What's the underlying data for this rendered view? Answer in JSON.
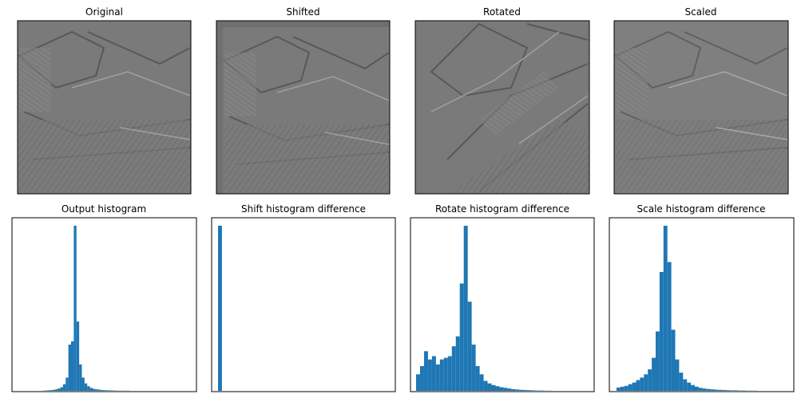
{
  "colors": {
    "histogram_bar": "#1f77b4",
    "image_gray": "#7a7a7a",
    "axis_frame": "#000000"
  },
  "image_panels": [
    {
      "title": "Original",
      "transform": "none"
    },
    {
      "title": "Shifted",
      "transform": "shift"
    },
    {
      "title": "Rotated",
      "transform": "rotate"
    },
    {
      "title": "Scaled",
      "transform": "scale"
    }
  ],
  "chart_data": [
    {
      "type": "bar",
      "title": "Output histogram",
      "xlabel": "",
      "ylabel": "",
      "grid": false,
      "x": [
        -10,
        -9,
        -8,
        -7,
        -6,
        -5,
        -4,
        -3,
        -2,
        -1,
        0,
        1,
        2,
        3,
        4,
        5,
        6,
        7,
        8,
        9,
        10,
        11,
        12,
        13,
        14,
        15,
        16,
        17,
        18,
        19,
        20,
        21,
        22,
        23,
        24,
        25,
        26,
        27,
        28,
        29,
        30
      ],
      "values": [
        1,
        2,
        3,
        4,
        6,
        9,
        14,
        22,
        40,
        80,
        280,
        300,
        1000,
        420,
        160,
        80,
        45,
        28,
        18,
        12,
        9,
        7,
        5,
        4,
        3,
        3,
        2,
        2,
        1,
        1,
        1,
        1,
        1,
        0,
        0,
        0,
        0,
        0,
        0,
        0,
        0
      ],
      "ylim": [
        0,
        1000
      ]
    },
    {
      "type": "bar",
      "title": "Shift histogram difference",
      "xlabel": "",
      "ylabel": "",
      "grid": false,
      "x": [
        0,
        1,
        2,
        3,
        4,
        5,
        6,
        7,
        8,
        9,
        10,
        11,
        12,
        13,
        14,
        15,
        16,
        17,
        18,
        19,
        20,
        21,
        22,
        23,
        24,
        25,
        26,
        27,
        28,
        29,
        30,
        31,
        32,
        33,
        34,
        35,
        36,
        37,
        38,
        39
      ],
      "values": [
        1000,
        0,
        0,
        0,
        0,
        0,
        0,
        0,
        0,
        0,
        0,
        0,
        0,
        0,
        0,
        0,
        0,
        0,
        0,
        0,
        0,
        0,
        0,
        0,
        0,
        0,
        0,
        0,
        0,
        0,
        0,
        0,
        0,
        0,
        0,
        0,
        0,
        0,
        0,
        0
      ],
      "ylim": [
        0,
        1000
      ]
    },
    {
      "type": "bar",
      "title": "Rotate histogram difference",
      "xlabel": "",
      "ylabel": "",
      "grid": false,
      "x": [
        0,
        1,
        2,
        3,
        4,
        5,
        6,
        7,
        8,
        9,
        10,
        11,
        12,
        13,
        14,
        15,
        16,
        17,
        18,
        19,
        20,
        21,
        22,
        23,
        24,
        25,
        26,
        27,
        28,
        29,
        30,
        31,
        32,
        33,
        34,
        35,
        36,
        37,
        38,
        39
      ],
      "values": [
        100,
        150,
        240,
        190,
        210,
        160,
        190,
        200,
        210,
        270,
        330,
        650,
        1000,
        540,
        280,
        150,
        100,
        60,
        45,
        35,
        28,
        22,
        18,
        14,
        10,
        8,
        6,
        5,
        4,
        3,
        2,
        2,
        1,
        1,
        0,
        0,
        0,
        0,
        0,
        0
      ],
      "ylim": [
        0,
        1000
      ]
    },
    {
      "type": "bar",
      "title": "Scale histogram difference",
      "xlabel": "",
      "ylabel": "",
      "grid": false,
      "x": [
        0,
        1,
        2,
        3,
        4,
        5,
        6,
        7,
        8,
        9,
        10,
        11,
        12,
        13,
        14,
        15,
        16,
        17,
        18,
        19,
        20,
        21,
        22,
        23,
        24,
        25,
        26,
        27,
        28,
        29,
        30,
        31,
        32,
        33,
        34,
        35,
        36,
        37,
        38,
        39
      ],
      "values": [
        20,
        25,
        30,
        40,
        50,
        65,
        80,
        100,
        130,
        200,
        360,
        720,
        1000,
        780,
        370,
        190,
        110,
        70,
        50,
        35,
        25,
        18,
        14,
        11,
        9,
        7,
        6,
        5,
        4,
        3,
        3,
        2,
        2,
        1,
        1,
        1,
        0,
        0,
        0,
        0
      ],
      "ylim": [
        0,
        1000
      ]
    }
  ]
}
